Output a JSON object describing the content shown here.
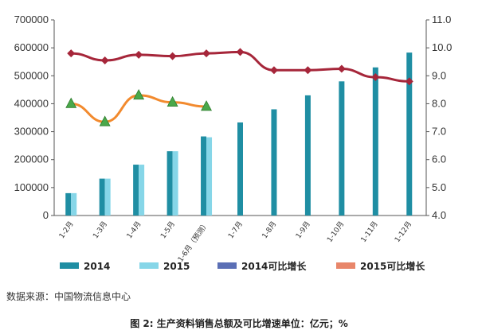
{
  "caption": "图 2: 生产资料销售总额及可比增速单位：亿元；%",
  "source_note": "数据来源：中国物流信息中心",
  "chart_data": {
    "type": "bar",
    "categories": [
      "1-2月",
      "1-3月",
      "1-4月",
      "1-5月",
      "1-6月（预测）",
      "1-7月",
      "1-8月",
      "1-9月",
      "1-10月",
      "1-11月",
      "1-12月"
    ],
    "y_left": {
      "min": 0,
      "max": 700000,
      "step": 100000,
      "ticks": [
        "0",
        "100000",
        "200000",
        "300000",
        "400000",
        "500000",
        "600000",
        "700000"
      ]
    },
    "y_right": {
      "min": 4.0,
      "max": 11.0,
      "step": 1.0,
      "ticks": [
        "4.0",
        "5.0",
        "6.0",
        "7.0",
        "8.0",
        "9.0",
        "10.0",
        "11.0"
      ]
    },
    "grid": false,
    "legend_position": "bottom",
    "series": [
      {
        "name": "2014",
        "kind": "bar",
        "axis": "left",
        "color": "#1f8ea3",
        "values": [
          80000,
          132000,
          182000,
          230000,
          283000,
          333000,
          380000,
          430000,
          480000,
          530000,
          583000
        ]
      },
      {
        "name": "2015",
        "kind": "bar",
        "axis": "left",
        "color": "#86d6e8",
        "values": [
          80000,
          132000,
          182000,
          230000,
          280000,
          null,
          null,
          null,
          null,
          null,
          null
        ]
      },
      {
        "name": "2014可比增长",
        "kind": "line",
        "axis": "right",
        "color": "#a6263a",
        "values": [
          9.8,
          9.55,
          9.75,
          9.7,
          9.8,
          9.85,
          9.2,
          9.2,
          9.25,
          8.95,
          8.8
        ]
      },
      {
        "name": "2015可比增长",
        "kind": "line",
        "axis": "right",
        "color": "#f28a2e",
        "values": [
          8.0,
          7.35,
          8.3,
          8.05,
          7.9,
          null,
          null,
          null,
          null,
          null,
          null
        ]
      }
    ],
    "legend": [
      {
        "label": "2014",
        "color": "#1f8ea3",
        "marker": "bar"
      },
      {
        "label": "2015",
        "color": "#86d6e8",
        "marker": "bar"
      },
      {
        "label": "2014可比增长",
        "color": "#5b6fb5",
        "marker": "bar"
      },
      {
        "label": "2015可比增长",
        "color": "#e8866a",
        "marker": "bar"
      }
    ]
  }
}
